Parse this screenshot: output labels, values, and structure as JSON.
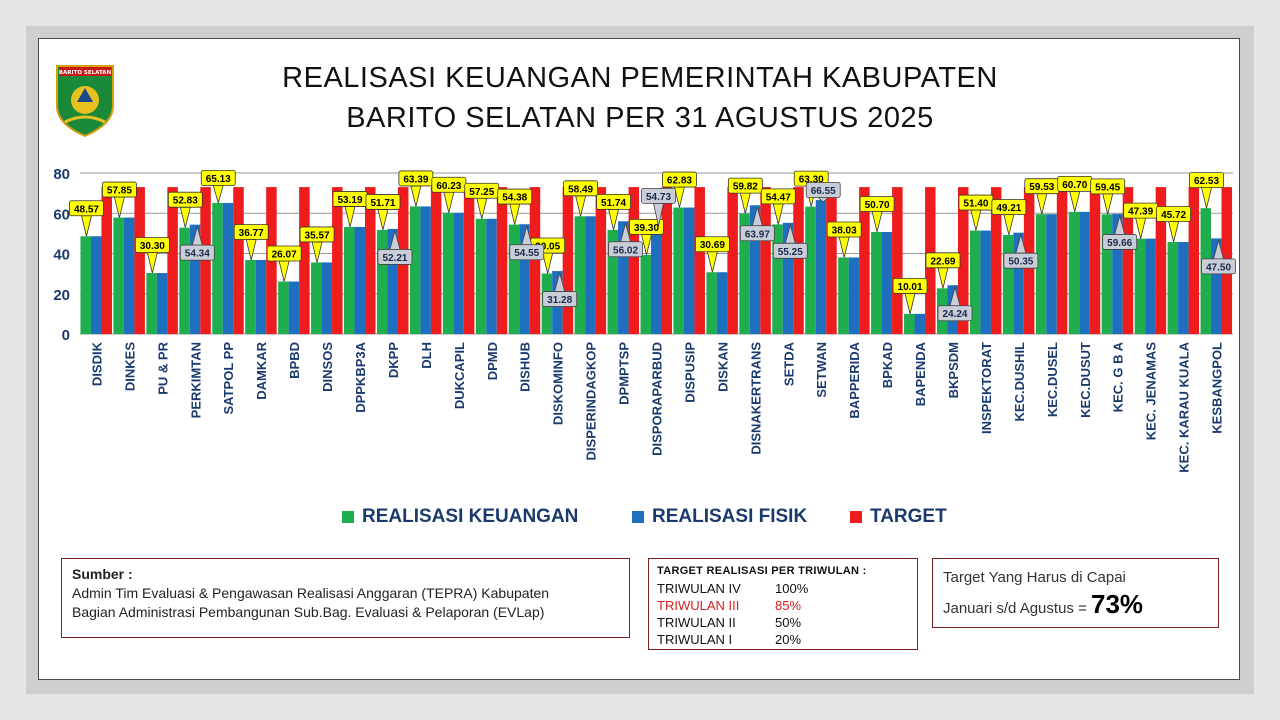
{
  "header": {
    "title_line1": "REALISASI KEUANGAN PEMERINTAH KABUPATEN",
    "title_line2": "BARITO SELATAN PER 31 AGUSTUS 2025",
    "logo_text": "BARITO SELATAN"
  },
  "colors": {
    "keuangan": "#1fae4e",
    "fisik": "#1f6fbf",
    "target": "#ee1c1c"
  },
  "chart_data": {
    "type": "bar",
    "ylim": [
      0,
      80
    ],
    "yticks": [
      0,
      20,
      40,
      60,
      80
    ],
    "grid": true,
    "legend_position": "bottom",
    "categories": [
      "DISDIK",
      "DINKES",
      "PU & PR",
      "PERKIMTAN",
      "SATPOL PP",
      "DAMKAR",
      "BPBD",
      "DINSOS",
      "DPPKBP3A",
      "DKPP",
      "DLH",
      "DUKCAPIL",
      "DPMD",
      "DISHUB",
      "DISKOMINFO",
      "DISPERINDAGKOP",
      "DPMPTSP",
      "DISPORAPARBUD",
      "DISPUSIP",
      "DISKAN",
      "DISNAKERTRANS",
      "SETDA",
      "SETWAN",
      "BAPPERIDA",
      "BPKAD",
      "BAPENDA",
      "BKPSDM",
      "INSPEKTORAT",
      "KEC.DUSHIL",
      "KEC.DUSEL",
      "KEC.DUSUT",
      "KEC. G B A",
      "KEC. JENAMAS",
      "KEC. KARAU KUALA",
      "KESBANGPOL"
    ],
    "series": [
      {
        "name": "REALISASI KEUANGAN",
        "values": [
          48.57,
          57.85,
          30.3,
          52.83,
          65.13,
          36.77,
          26.07,
          35.57,
          53.19,
          51.71,
          63.39,
          60.23,
          57.25,
          54.38,
          30.05,
          58.49,
          51.74,
          39.3,
          62.83,
          30.69,
          59.82,
          54.47,
          63.3,
          38.03,
          50.7,
          10.01,
          22.69,
          51.4,
          49.21,
          59.53,
          60.7,
          59.45,
          47.39,
          45.72,
          62.53
        ]
      },
      {
        "name": "REALISASI FISIK",
        "values": [
          48.57,
          57.85,
          30.3,
          54.34,
          65.13,
          36.77,
          26.07,
          35.57,
          53.19,
          52.21,
          63.39,
          60.23,
          57.25,
          54.55,
          31.28,
          58.49,
          56.02,
          54.73,
          62.83,
          30.69,
          63.97,
          55.25,
          66.55,
          38.03,
          50.7,
          10.01,
          24.24,
          51.4,
          50.35,
          59.53,
          60.7,
          59.66,
          47.39,
          45.72,
          47.5
        ]
      },
      {
        "name": "TARGET",
        "values": [
          73,
          73,
          73,
          73,
          73,
          73,
          73,
          73,
          73,
          73,
          73,
          73,
          73,
          73,
          73,
          73,
          73,
          73,
          73,
          73,
          73,
          73,
          73,
          73,
          73,
          73,
          73,
          73,
          73,
          73,
          73,
          73,
          73,
          73,
          73
        ]
      }
    ],
    "keuangan_labels": [
      "48.57",
      "57.85",
      "30.30",
      "52.83",
      "65.13",
      "36.77",
      "26.07",
      "35.57",
      "53.19",
      "51.71",
      "63.39",
      "60.23",
      "57.25",
      "54.38",
      "30.05",
      "58.49",
      "51.74",
      "39.30",
      "62.83",
      "30.69",
      "59.82",
      "54.47",
      "63.30",
      "38.03",
      "50.70",
      "10.01",
      "22.69",
      "51.40",
      "49.21",
      "59.53",
      "60.70",
      "59.45",
      "47.39",
      "45.72",
      "62.53"
    ],
    "fisik_labels": [
      {
        "i": 3,
        "text": "54.34"
      },
      {
        "i": 9,
        "text": "52.21"
      },
      {
        "i": 13,
        "text": "54.55"
      },
      {
        "i": 14,
        "text": "31.28"
      },
      {
        "i": 16,
        "text": "56.02"
      },
      {
        "i": 17,
        "text": "54.73"
      },
      {
        "i": 20,
        "text": "63.97"
      },
      {
        "i": 21,
        "text": "55.25"
      },
      {
        "i": 22,
        "text": "66.55"
      },
      {
        "i": 26,
        "text": "24.24"
      },
      {
        "i": 28,
        "text": "50.35"
      },
      {
        "i": 31,
        "text": "59.66"
      },
      {
        "i": 34,
        "text": "47.50"
      }
    ]
  },
  "legend": [
    "REALISASI KEUANGAN",
    "REALISASI FISIK",
    "TARGET"
  ],
  "source": {
    "heading": "Sumber :",
    "line1": "Admin Tim Evaluasi & Pengawasan Realisasi Anggaran (TEPRA) Kabupaten",
    "line2": "Bagian Administrasi Pembangunan Sub.Bag. Evaluasi & Pelaporan (EVLap)"
  },
  "triwulan": {
    "heading": "TARGET REALISASI PER TRIWULAN :",
    "rows": [
      {
        "name": "TRIWULAN IV",
        "value": "100%"
      },
      {
        "name": "TRIWULAN III",
        "value": "85%"
      },
      {
        "name": "TRIWULAN II",
        "value": "50%"
      },
      {
        "name": "TRIWULAN I",
        "value": "20%"
      }
    ]
  },
  "target_capai": {
    "line1": "Target Yang Harus di Capai",
    "line2": "Januari s/d Agustus =",
    "value": "73%"
  }
}
